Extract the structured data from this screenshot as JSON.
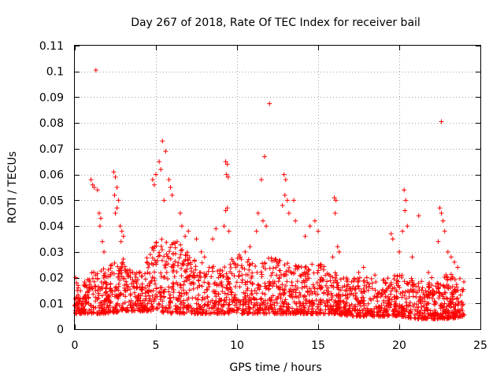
{
  "chart_data": {
    "type": "scatter",
    "title": "Day 267 of 2018, Rate Of TEC Index for receiver bail",
    "xlabel": "GPS time / hours",
    "ylabel": "ROTI / TECUs",
    "xlim": [
      0,
      25
    ],
    "ylim": [
      0,
      0.11
    ],
    "xticks": [
      "0",
      "5",
      "10",
      "15",
      "20",
      "25"
    ],
    "yticks": [
      "0",
      "0.01",
      "0.02",
      "0.03",
      "0.04",
      "0.05",
      "0.06",
      "0.07",
      "0.08",
      "0.09",
      "0.1",
      "0.11"
    ],
    "grid": true,
    "marker": "plus",
    "color": "#ff0000",
    "series": [
      {
        "name": "ROTI",
        "points": [
          [
            1.3,
            0.1005
          ],
          [
            12.0,
            0.0875
          ],
          [
            22.6,
            0.0805
          ],
          [
            11.7,
            0.067
          ],
          [
            5.4,
            0.073
          ],
          [
            5.6,
            0.069
          ],
          [
            5.2,
            0.065
          ],
          [
            5.3,
            0.062
          ],
          [
            5.0,
            0.06
          ],
          [
            5.8,
            0.058
          ],
          [
            4.8,
            0.058
          ],
          [
            5.9,
            0.055
          ],
          [
            6.0,
            0.052
          ],
          [
            5.5,
            0.05
          ],
          [
            4.9,
            0.056
          ],
          [
            2.4,
            0.061
          ],
          [
            2.5,
            0.059
          ],
          [
            2.6,
            0.055
          ],
          [
            2.45,
            0.052
          ],
          [
            2.7,
            0.05
          ],
          [
            2.6,
            0.047
          ],
          [
            2.5,
            0.045
          ],
          [
            2.8,
            0.04
          ],
          [
            2.9,
            0.038
          ],
          [
            3.0,
            0.036
          ],
          [
            2.85,
            0.034
          ],
          [
            1.0,
            0.058
          ],
          [
            1.1,
            0.056
          ],
          [
            1.2,
            0.055
          ],
          [
            1.4,
            0.054
          ],
          [
            1.5,
            0.045
          ],
          [
            1.6,
            0.043
          ],
          [
            1.55,
            0.04
          ],
          [
            1.7,
            0.034
          ],
          [
            1.8,
            0.03
          ],
          [
            9.3,
            0.065
          ],
          [
            9.4,
            0.064
          ],
          [
            9.35,
            0.06
          ],
          [
            9.45,
            0.059
          ],
          [
            9.4,
            0.047
          ],
          [
            9.3,
            0.046
          ],
          [
            9.2,
            0.04
          ],
          [
            9.5,
            0.038
          ],
          [
            11.5,
            0.058
          ],
          [
            11.3,
            0.045
          ],
          [
            11.6,
            0.042
          ],
          [
            11.2,
            0.038
          ],
          [
            11.8,
            0.04
          ],
          [
            12.9,
            0.06
          ],
          [
            13.0,
            0.058
          ],
          [
            12.95,
            0.052
          ],
          [
            13.1,
            0.05
          ],
          [
            12.8,
            0.048
          ],
          [
            13.2,
            0.045
          ],
          [
            13.5,
            0.05
          ],
          [
            13.6,
            0.042
          ],
          [
            14.5,
            0.04
          ],
          [
            14.8,
            0.042
          ],
          [
            15.0,
            0.038
          ],
          [
            14.2,
            0.036
          ],
          [
            16.0,
            0.051
          ],
          [
            16.1,
            0.05
          ],
          [
            16.05,
            0.045
          ],
          [
            16.2,
            0.032
          ],
          [
            16.3,
            0.03
          ],
          [
            15.9,
            0.028
          ],
          [
            6.5,
            0.045
          ],
          [
            6.6,
            0.04
          ],
          [
            7.0,
            0.038
          ],
          [
            6.8,
            0.036
          ],
          [
            7.5,
            0.035
          ],
          [
            8.5,
            0.035
          ],
          [
            8.7,
            0.039
          ],
          [
            7.8,
            0.03
          ],
          [
            8.0,
            0.028
          ],
          [
            10.5,
            0.03
          ],
          [
            10.8,
            0.032
          ],
          [
            10.2,
            0.028
          ],
          [
            20.3,
            0.054
          ],
          [
            20.4,
            0.05
          ],
          [
            20.35,
            0.046
          ],
          [
            20.5,
            0.04
          ],
          [
            20.2,
            0.038
          ],
          [
            21.2,
            0.044
          ],
          [
            19.5,
            0.037
          ],
          [
            19.6,
            0.035
          ],
          [
            20.0,
            0.03
          ],
          [
            20.8,
            0.028
          ],
          [
            22.5,
            0.047
          ],
          [
            22.6,
            0.045
          ],
          [
            22.7,
            0.042
          ],
          [
            22.8,
            0.038
          ],
          [
            22.4,
            0.034
          ],
          [
            23.0,
            0.03
          ],
          [
            23.2,
            0.028
          ],
          [
            23.4,
            0.026
          ],
          [
            23.6,
            0.024
          ],
          [
            0.05,
            0.02
          ],
          [
            0.1,
            0.018
          ],
          [
            0.2,
            0.017
          ],
          [
            0.15,
            0.015
          ],
          [
            17.5,
            0.022
          ],
          [
            18.0,
            0.02
          ],
          [
            18.5,
            0.021
          ],
          [
            19.0,
            0.019
          ],
          [
            17.8,
            0.024
          ],
          [
            21.8,
            0.022
          ],
          [
            22.0,
            0.02
          ]
        ]
      }
    ],
    "dense_band": {
      "x_range": [
        0,
        24
      ],
      "min_values": [
        0.006,
        0.006,
        0.006,
        0.007,
        0.007,
        0.007,
        0.006,
        0.006,
        0.006,
        0.006,
        0.006,
        0.006,
        0.006,
        0.006,
        0.006,
        0.006,
        0.006,
        0.005,
        0.005,
        0.005,
        0.005,
        0.004,
        0.004,
        0.004,
        0.005
      ],
      "max_values": [
        0.018,
        0.022,
        0.025,
        0.028,
        0.022,
        0.035,
        0.036,
        0.03,
        0.026,
        0.024,
        0.03,
        0.026,
        0.028,
        0.026,
        0.025,
        0.026,
        0.022,
        0.02,
        0.02,
        0.019,
        0.022,
        0.019,
        0.018,
        0.022,
        0.02
      ]
    }
  }
}
